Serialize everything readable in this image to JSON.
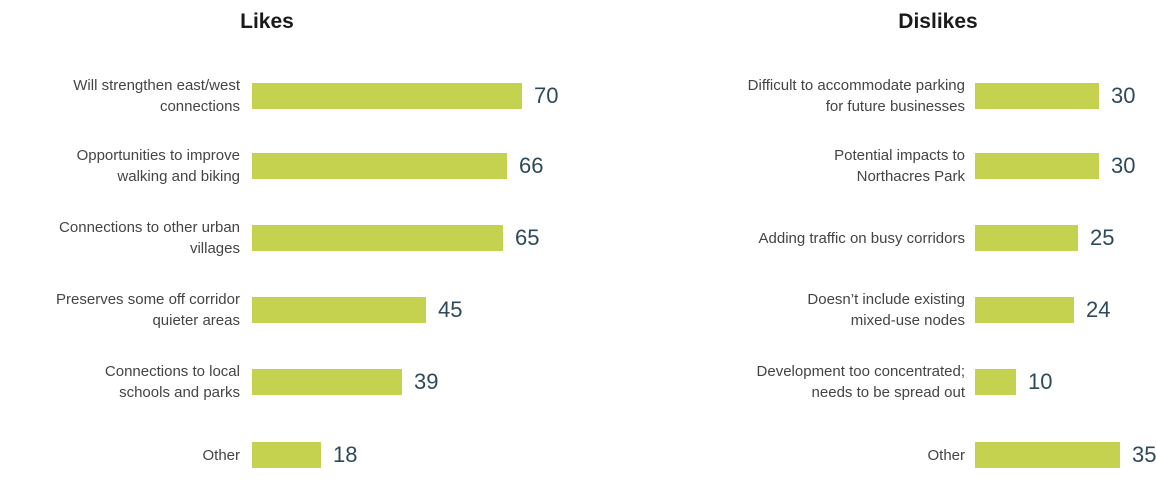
{
  "chart_data": [
    {
      "type": "bar",
      "orientation": "horizontal",
      "title": "Likes",
      "categories": [
        "Will strengthen east/west connections",
        "Opportunities to improve walking and biking",
        "Connections to other urban villages",
        "Preserves some off corridor quieter areas",
        "Connections to local schools and parks",
        "Other"
      ],
      "category_lines": [
        [
          "Will strengthen east/west",
          "connections"
        ],
        [
          "Opportunities to improve",
          "walking and biking"
        ],
        [
          "Connections to other urban",
          "villages"
        ],
        [
          "Preserves some off corridor",
          "quieter areas"
        ],
        [
          "Connections to local",
          "schools and parks"
        ],
        [
          "Other"
        ]
      ],
      "values": [
        70,
        66,
        65,
        45,
        39,
        18
      ],
      "bar_color": "#c5d250",
      "value_label_color": "#2e4a5a",
      "grid": false,
      "legend": false
    },
    {
      "type": "bar",
      "orientation": "horizontal",
      "title": "Dislikes",
      "categories": [
        "Difficult to accommodate parking for future businesses",
        "Potential impacts to Northacres Park",
        "Adding traffic on busy corridors",
        "Doesn’t include existing mixed-use nodes",
        "Development too concentrated; needs to be spread out",
        "Other"
      ],
      "category_lines": [
        [
          "Difficult to accommodate parking",
          "for future businesses"
        ],
        [
          "Potential impacts to",
          "Northacres Park"
        ],
        [
          "Adding traffic on busy corridors"
        ],
        [
          "Doesn’t include existing",
          "mixed-use nodes"
        ],
        [
          "Development too concentrated;",
          "needs to be spread out"
        ],
        [
          "Other"
        ]
      ],
      "values": [
        30,
        30,
        25,
        24,
        10,
        35
      ],
      "bar_color": "#c5d250",
      "value_label_color": "#2e4a5a",
      "grid": false,
      "legend": false
    }
  ]
}
